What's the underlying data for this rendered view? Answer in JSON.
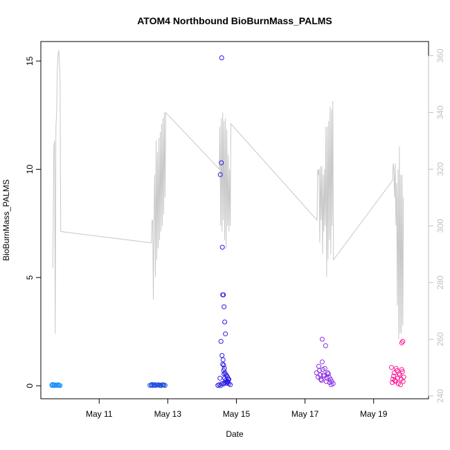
{
  "chart_data": {
    "type": "scatter",
    "title": "ATOM4 Northbound BioBurnMass_PALMS",
    "xlabel": "Date",
    "ylabel": "BioBurnMass_PALMS",
    "xlim": [
      9.3,
      20.6
    ],
    "ylim": [
      -0.6,
      15.9
    ],
    "y2lim": [
      239,
      365
    ],
    "x_ticks": [
      {
        "value": 11,
        "label": "May 11"
      },
      {
        "value": 13,
        "label": "May 13"
      },
      {
        "value": 15,
        "label": "May 15"
      },
      {
        "value": 17,
        "label": "May 17"
      },
      {
        "value": 19,
        "label": "May 19"
      }
    ],
    "y_ticks": [
      0,
      5,
      10,
      15
    ],
    "y2_ticks": [
      240,
      260,
      280,
      300,
      320,
      340,
      360
    ],
    "colors": {
      "background_line": "#c8c8c8",
      "right_axis": "#bfbfbf"
    },
    "background_series": {
      "name": "",
      "axis": "right",
      "x": [
        9.65,
        9.68,
        9.7,
        9.72,
        9.74,
        9.76,
        9.78,
        9.8,
        9.82,
        9.84,
        9.86,
        9.88,
        12.52,
        12.54,
        12.56,
        12.58,
        12.6,
        12.62,
        12.64,
        12.66,
        12.68,
        12.7,
        12.72,
        12.74,
        12.76,
        12.78,
        12.8,
        12.82,
        12.84,
        12.86,
        12.88,
        12.9,
        12.92,
        12.94,
        14.5,
        14.52,
        14.54,
        14.56,
        14.58,
        14.6,
        14.62,
        14.64,
        14.66,
        14.68,
        14.7,
        14.72,
        14.74,
        14.76,
        14.78,
        14.8,
        14.82,
        14.84,
        17.35,
        17.37,
        17.39,
        17.41,
        17.43,
        17.45,
        17.47,
        17.49,
        17.51,
        17.53,
        17.55,
        17.57,
        17.59,
        17.61,
        17.63,
        17.65,
        17.67,
        17.69,
        17.71,
        17.73,
        17.75,
        17.77,
        17.79,
        17.81,
        17.83,
        19.55,
        19.57,
        19.59,
        19.61,
        19.63,
        19.65,
        19.67,
        19.69,
        19.71,
        19.73,
        19.75,
        19.77,
        19.79,
        19.81,
        19.83,
        19.85,
        19.87
      ],
      "y": [
        285,
        328,
        330,
        262,
        335,
        340,
        355,
        360,
        362,
        358,
        350,
        298,
        294,
        302,
        302,
        274,
        305,
        318,
        282,
        330,
        288,
        326,
        292,
        331,
        295,
        333,
        298,
        336,
        300,
        338,
        304,
        340,
        310,
        340,
        320,
        335,
        300,
        338,
        298,
        340,
        302,
        337,
        295,
        338,
        292,
        334,
        300,
        325,
        298,
        320,
        300,
        336,
        302,
        320,
        318,
        320,
        294,
        321,
        302,
        321,
        290,
        318,
        298,
        320,
        300,
        335,
        282,
        335,
        288,
        337,
        295,
        342,
        290,
        341,
        300,
        344,
        288,
        316,
        322,
        320,
        310,
        322,
        300,
        315,
        272,
        320,
        260,
        328,
        262,
        318,
        262,
        318,
        265,
        310
      ]
    },
    "series": [
      {
        "name": "",
        "color": "#1e90ff",
        "x": [
          9.62,
          9.65,
          9.68,
          9.71,
          9.74,
          9.77,
          9.8,
          9.83,
          9.86,
          9.64,
          9.7,
          9.76,
          9.82
        ],
        "y": [
          0.02,
          0.03,
          0.01,
          0.04,
          0.02,
          0.03,
          0.05,
          0.02,
          0.01,
          0.06,
          0.04,
          0.02,
          0.03
        ]
      },
      {
        "name": "",
        "color": "#1f4fe0",
        "x": [
          12.48,
          12.52,
          12.56,
          12.6,
          12.64,
          12.68,
          12.72,
          12.76,
          12.8,
          12.84,
          12.88,
          12.92,
          12.54,
          12.62,
          12.7,
          12.78,
          12.86
        ],
        "y": [
          0.02,
          0.03,
          0.01,
          0.04,
          0.02,
          0.03,
          0.05,
          0.02,
          0.01,
          0.04,
          0.03,
          0.02,
          0.06,
          0.05,
          0.04,
          0.03,
          0.05
        ]
      },
      {
        "name": "",
        "color": "#2a1be0",
        "x": [
          14.46,
          14.5,
          14.54,
          14.58,
          14.62,
          14.66,
          14.7,
          14.74,
          14.78,
          14.82,
          14.53,
          14.56,
          14.57,
          14.59,
          14.6,
          14.62,
          14.64,
          14.66,
          14.68,
          14.55,
          14.58,
          14.61,
          14.63,
          14.65,
          14.67,
          14.7,
          14.72,
          14.74,
          14.76,
          14.6,
          14.63,
          14.66,
          14.69,
          14.72,
          14.75,
          14.78,
          14.52,
          14.64
        ],
        "y": [
          0.02,
          0.05,
          0.01,
          0.1,
          0.08,
          0.15,
          0.12,
          0.2,
          0.1,
          0.05,
          9.75,
          10.3,
          15.15,
          6.4,
          4.2,
          4.2,
          3.65,
          2.95,
          2.4,
          2.05,
          1.4,
          1.2,
          0.95,
          0.8,
          0.6,
          0.5,
          0.45,
          0.4,
          0.3,
          1.0,
          0.7,
          0.35,
          0.25,
          0.2,
          0.15,
          0.3,
          0.35,
          0.55
        ]
      },
      {
        "name": "",
        "color": "#8a2be2",
        "x": [
          17.34,
          17.38,
          17.42,
          17.46,
          17.5,
          17.54,
          17.58,
          17.62,
          17.66,
          17.7,
          17.74,
          17.78,
          17.82,
          17.5,
          17.6,
          17.4,
          17.44,
          17.48,
          17.52,
          17.56,
          17.64,
          17.68,
          17.72,
          17.76
        ],
        "y": [
          0.6,
          0.4,
          0.7,
          0.3,
          1.1,
          0.5,
          0.8,
          0.2,
          0.6,
          0.4,
          0.3,
          0.2,
          0.1,
          2.15,
          1.85,
          0.9,
          0.5,
          0.25,
          0.75,
          0.45,
          0.35,
          0.55,
          0.15,
          0.05
        ]
      },
      {
        "name": "",
        "color": "#ff1493",
        "x": [
          19.52,
          19.56,
          19.6,
          19.64,
          19.68,
          19.72,
          19.76,
          19.8,
          19.84,
          19.88,
          19.54,
          19.58,
          19.62,
          19.66,
          19.7,
          19.74,
          19.78,
          19.82,
          19.86,
          19.82,
          19.85
        ],
        "y": [
          0.85,
          0.3,
          0.6,
          0.2,
          0.7,
          0.1,
          0.5,
          0.3,
          0.65,
          0.4,
          0.15,
          0.45,
          0.25,
          0.8,
          0.35,
          0.55,
          0.05,
          0.75,
          0.2,
          1.98,
          2.05
        ]
      }
    ]
  }
}
